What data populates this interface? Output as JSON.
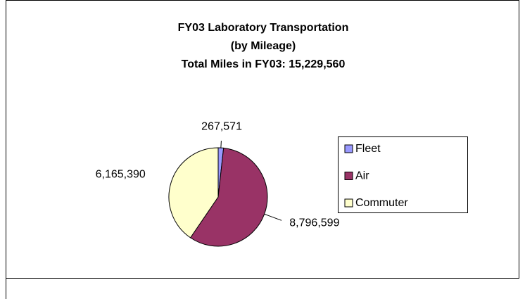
{
  "chart_data": {
    "type": "pie",
    "title": "FY03 Laboratory Transportation",
    "subtitle": "(by Mileage)",
    "annotation": "Total Miles in FY03: 15,229,560",
    "categories": [
      "Fleet",
      "Air",
      "Commuter"
    ],
    "values": [
      267571,
      8796599,
      6165390
    ],
    "value_labels": [
      "267,571",
      "8,796,599",
      "6,165,390"
    ],
    "colors": [
      "#9999ff",
      "#993366",
      "#ffffcc"
    ],
    "legend": "right"
  }
}
